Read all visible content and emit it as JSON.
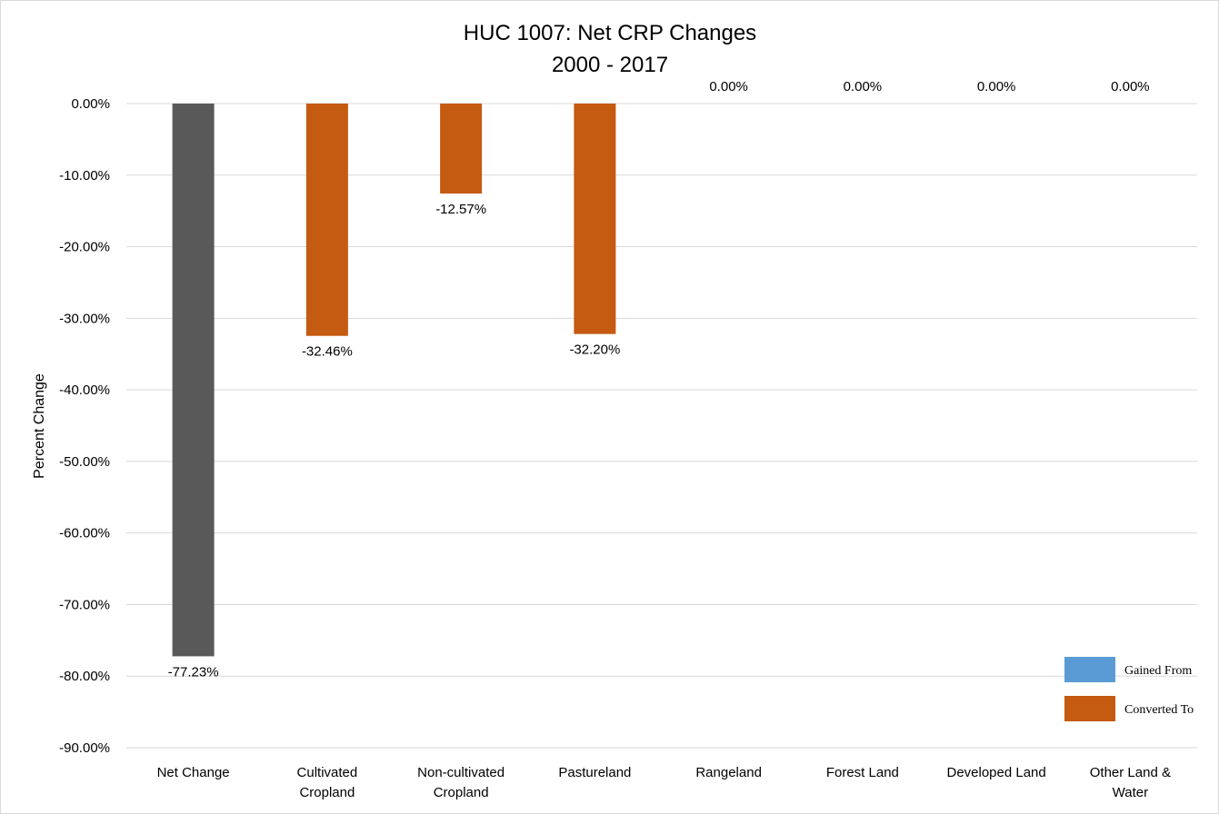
{
  "chart_data": {
    "type": "bar",
    "title": [
      "HUC 1007: Net CRP Changes",
      "2000 - 2017"
    ],
    "ylabel": "Percent Change",
    "xlabel": "",
    "ylim": [
      -90,
      0
    ],
    "yticks": [
      0,
      -10,
      -20,
      -30,
      -40,
      -50,
      -60,
      -70,
      -80,
      -90
    ],
    "ytick_labels": [
      "0.00%",
      "-10.00%",
      "-20.00%",
      "-30.00%",
      "-40.00%",
      "-50.00%",
      "-60.00%",
      "-70.00%",
      "-80.00%",
      "-90.00%"
    ],
    "grid": true,
    "legend_position": "bottom-right",
    "categories": [
      [
        "Net Change"
      ],
      [
        "Cultivated",
        "Cropland"
      ],
      [
        "Non-cultivated",
        "Cropland"
      ],
      [
        "Pastureland"
      ],
      [
        "Rangeland"
      ],
      [
        "Forest Land"
      ],
      [
        "Developed Land"
      ],
      [
        "Other Land &",
        "Water"
      ]
    ],
    "values": [
      -77.23,
      -32.46,
      -12.57,
      -32.2,
      0,
      0,
      0,
      0
    ],
    "data_labels": [
      "-77.23%",
      "-32.46%",
      "-12.57%",
      "-32.20%",
      "0.00%",
      "0.00%",
      "0.00%",
      "0.00%"
    ],
    "bar_colors": [
      "#595959",
      "#c55a11",
      "#c55a11",
      "#c55a11",
      "#c55a11",
      "#c55a11",
      "#c55a11",
      "#c55a11"
    ],
    "legend": [
      {
        "name": "Gained From",
        "color": "#5b9bd5"
      },
      {
        "name": "Converted To",
        "color": "#c55a11"
      }
    ]
  }
}
